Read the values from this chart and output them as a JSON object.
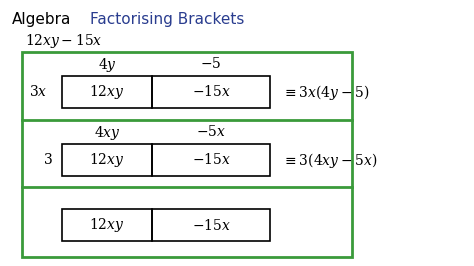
{
  "title_algebra": "Algebra",
  "title_topic": "Factorising Brackets",
  "bg_color": "#ffffff",
  "green": "#3a9a3a",
  "black": "#000000",
  "blue_title": "#2a3d8f",
  "fig_w": 4.74,
  "fig_h": 2.66,
  "dpi": 100
}
